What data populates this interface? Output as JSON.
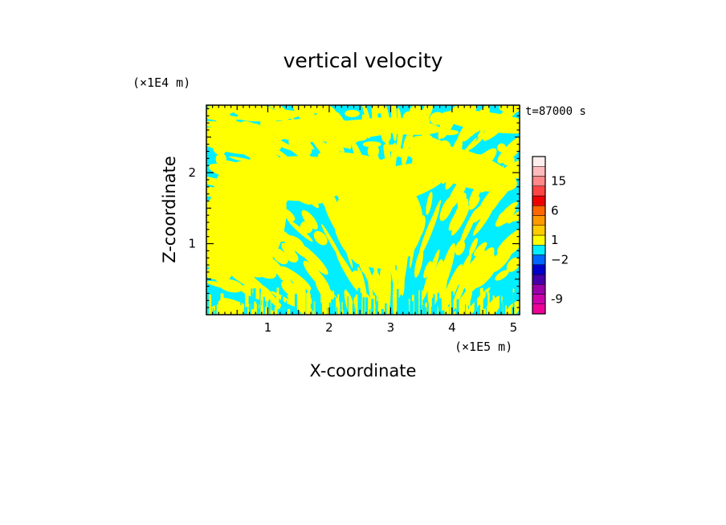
{
  "chart_data": {
    "type": "heatmap",
    "title": "vertical velocity",
    "xlabel": "X-coordinate",
    "ylabel": "Z-coordinate",
    "x_unit": "(×1E5 m)",
    "y_unit": "(×1E4 m)",
    "time_label": "t=87000 s",
    "xlim": [
      0,
      5.1
    ],
    "ylim": [
      0,
      2.95
    ],
    "x_ticks": [
      1,
      2,
      3,
      4,
      5
    ],
    "y_ticks": [
      1,
      2
    ],
    "field_colors": {
      "negative": "#00eeff",
      "positive": "#ffff00"
    },
    "colorbar": {
      "levels": [
        {
          "color": "#ee0099"
        },
        {
          "color": "#cc00aa"
        },
        {
          "color": "#9900aa"
        },
        {
          "color": "#4400aa"
        },
        {
          "color": "#0000cc"
        },
        {
          "color": "#0066ff"
        },
        {
          "color": "#00eeff"
        },
        {
          "color": "#ffff00"
        },
        {
          "color": "#ffcc00"
        },
        {
          "color": "#ff9900"
        },
        {
          "color": "#ff6600"
        },
        {
          "color": "#ee0000"
        },
        {
          "color": "#ff4444"
        },
        {
          "color": "#ff8888"
        },
        {
          "color": "#ffbbbb"
        },
        {
          "color": "#ffeeee"
        }
      ],
      "ticks": [
        {
          "label": "-9",
          "value": -9
        },
        {
          "label": "−2",
          "value": -2
        },
        {
          "label": "1",
          "value": 1
        },
        {
          "label": "6",
          "value": 6
        },
        {
          "label": "15",
          "value": 15
        }
      ]
    }
  }
}
